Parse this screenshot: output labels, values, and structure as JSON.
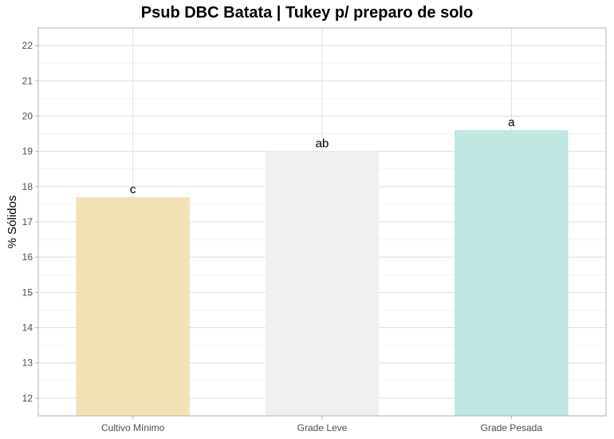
{
  "chart_data": {
    "type": "bar",
    "title": "Psub DBC Batata | Tukey p/ preparo de solo",
    "xlabel": "",
    "ylabel": "% Sólidos",
    "categories": [
      "Cultivo Mínimo",
      "Grade Leve",
      "Grade Pesada"
    ],
    "values": [
      17.7,
      19.0,
      19.6
    ],
    "labels": [
      "c",
      "ab",
      "a"
    ],
    "colors": [
      "#f3e1b6",
      "#f0f0f0",
      "#bfe6e1"
    ],
    "ylim": [
      11.5,
      22.5
    ],
    "yticks": [
      12,
      13,
      14,
      15,
      16,
      17,
      18,
      19,
      20,
      21,
      22
    ],
    "grid": true,
    "legend": "none"
  }
}
